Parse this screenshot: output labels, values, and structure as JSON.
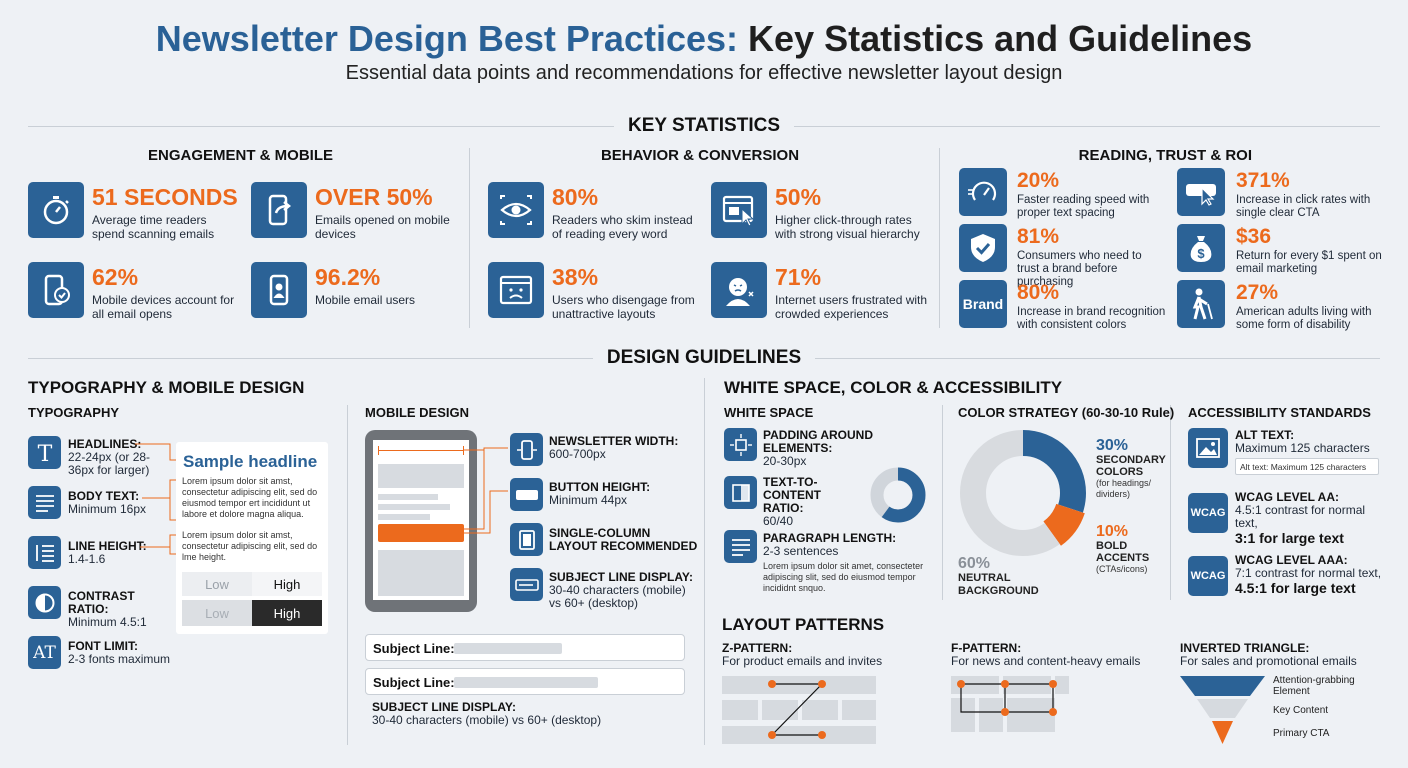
{
  "header": {
    "title_part1": "Newsletter Design Best Practices:",
    "title_part2": "Key Statistics and Guidelines",
    "subtitle": "Essential data points and recommendations for effective newsletter layout design"
  },
  "key_statistics": {
    "heading": "KEY STATISTICS",
    "columns": [
      {
        "heading": "ENGAGEMENT & MOBILE",
        "stats": [
          {
            "icon": "stopwatch-icon",
            "value": "51 SECONDS",
            "text": "Average time readers spend scanning emails"
          },
          {
            "icon": "phone-share-icon",
            "value": "OVER 50%",
            "text": "Emails opened on mobile devices"
          },
          {
            "icon": "phone-check-icon",
            "value": "62%",
            "text": "Mobile devices account for all email opens"
          },
          {
            "icon": "phone-user-icon",
            "value": "96.2%",
            "text": "Mobile email users"
          }
        ]
      },
      {
        "heading": "BEHAVIOR & CONVERSION",
        "stats": [
          {
            "icon": "eye-icon",
            "value": "80%",
            "text": "Readers who skim instead of reading every word"
          },
          {
            "icon": "browser-click-icon",
            "value": "50%",
            "text": "Higher click-through rates with strong visual hierarchy"
          },
          {
            "icon": "sad-browser-icon",
            "value": "38%",
            "text": "Users who disengage from unattractive layouts"
          },
          {
            "icon": "frustrated-user-icon",
            "value": "71%",
            "text": "Internet users frustrated with crowded experiences"
          }
        ]
      },
      {
        "heading": "READING, TRUST & ROI",
        "stats": [
          {
            "icon": "speedometer-icon",
            "value": "20%",
            "text": "Faster reading speed with proper text spacing"
          },
          {
            "icon": "cta-click-icon",
            "value": "371%",
            "text": "Increase in click rates with single clear CTA"
          },
          {
            "icon": "shield-check-icon",
            "value": "81%",
            "text": "Consumers who need to trust a brand before purchasing"
          },
          {
            "icon": "money-bag-icon",
            "value": "$36",
            "text": "Return for every $1 spent on email marketing"
          },
          {
            "icon": "brand-icon",
            "icon_label": "Brand",
            "value": "80%",
            "text": "Increase in brand recognition with consistent colors"
          },
          {
            "icon": "accessibility-person-icon",
            "value": "27%",
            "text": "American adults living with some form of disability"
          }
        ]
      }
    ]
  },
  "design_guidelines": {
    "heading": "DESIGN GUIDELINES",
    "typo_mobile_heading": "TYPOGRAPHY & MOBILE DESIGN",
    "typography": {
      "heading": "TYPOGRAPHY",
      "items": [
        {
          "icon": "text-t-icon",
          "label": "HEADLINES:",
          "value": "22-24px (or 28-36px for larger)"
        },
        {
          "icon": "paragraph-lines-icon",
          "label": "BODY TEXT:",
          "value": "Minimum 16px"
        },
        {
          "icon": "line-height-icon",
          "label": "LINE HEIGHT:",
          "value": "1.4-1.6"
        },
        {
          "icon": "contrast-icon",
          "label": "CONTRAST RATIO:",
          "value": "Minimum 4.5:1"
        },
        {
          "icon": "font-at-icon",
          "icon_label": "AT",
          "label": "FONT LIMIT:",
          "value": "2-3 fonts maximum"
        }
      ],
      "sample": {
        "headline": "Sample headline",
        "para1": "Lorem ipsum dolor sit amst, consectetur adipiscing elit, sed do eiusmod tempor ert incididunt ut labore et dolore magna aliqua.",
        "para2": "Lorem ipsum dolor sit amst, consectetur adipiscing elit, sed do lme height.",
        "contrast_low": "Low",
        "contrast_high": "High"
      }
    },
    "mobile": {
      "heading": "MOBILE DESIGN",
      "items": [
        {
          "icon": "phone-width-icon",
          "label": "NEWSLETTER WIDTH:",
          "value": "600-700px"
        },
        {
          "icon": "button-icon",
          "label": "BUTTON HEIGHT:",
          "value": "Minimum 44px"
        },
        {
          "icon": "single-column-icon",
          "label": "SINGLE-COLUMN LAYOUT RECOMMENDED",
          "value": ""
        },
        {
          "icon": "subject-line-icon",
          "label": "SUBJECT LINE DISPLAY:",
          "value": "30-40 characters (mobile) vs 60+ (desktop)"
        }
      ],
      "subject_label_1": "Subject Line:",
      "subject_label_2": "Subject Line:",
      "bottom_label": "SUBJECT LINE DISPLAY:",
      "bottom_value": "30-40 characters (mobile) vs 60+ (desktop)"
    },
    "ws_color_heading": "WHITE SPACE, COLOR & ACCESSIBILITY",
    "white_space": {
      "heading": "WHITE SPACE",
      "items": [
        {
          "icon": "padding-icon",
          "label": "PADDING AROUND ELEMENTS:",
          "value": "20-30px"
        },
        {
          "icon": "text-ratio-icon",
          "label": "TEXT-TO-CONTENT RATIO:",
          "value": "60/40"
        },
        {
          "icon": "paragraph-icon",
          "label": "PARAGRAPH LENGTH:",
          "value": "2-3 sentences"
        }
      ],
      "ratio_text": 60,
      "ratio_content": 40,
      "sample": "Lorem ipsum dolor sit amet, consecteter adipiscing slit, sed do eiusmod tempor incididnt snquo."
    },
    "color_strategy": {
      "heading": "COLOR STRATEGY (60-30-10 Rule)",
      "segments": [
        {
          "name": "NEUTRAL BACKGROUND",
          "pct_label": "60%",
          "value": 60,
          "color": "#d8dbdf",
          "note": ""
        },
        {
          "name": "SECONDARY COLORS",
          "pct_label": "30%",
          "value": 30,
          "color": "#2b6296",
          "note": "(for headings/ dividers)"
        },
        {
          "name": "BOLD ACCENTS",
          "pct_label": "10%",
          "value": 10,
          "color": "#ec6a1d",
          "note": "(CTAs/icons)"
        }
      ]
    },
    "accessibility": {
      "heading": "ACCESSIBILITY STANDARDS",
      "items": [
        {
          "icon": "image-alt-icon",
          "label": "ALT TEXT:",
          "value": "Maximum 125 characters",
          "example": "Alt text: Maximum 125 characters"
        },
        {
          "icon": "wcag-aa-icon",
          "icon_label": "WCAG",
          "label": "WCAG LEVEL AA:",
          "value": "4.5:1 contrast for normal text,",
          "big": "3:1 for large text"
        },
        {
          "icon": "wcag-aaa-icon",
          "icon_label": "WCAG",
          "label": "WCAG LEVEL AAA:",
          "value": "7:1 contrast for normal text,",
          "big": "4.5:1 for large text"
        }
      ]
    },
    "layout_patterns": {
      "heading": "LAYOUT PATTERNS",
      "items": [
        {
          "label": "Z-PATTERN:",
          "value": "For product emails and invites"
        },
        {
          "label": "F-PATTERN:",
          "value": "For news and content-heavy emails"
        },
        {
          "label": "INVERTED TRIANGLE:",
          "value": "For sales and promotional emails"
        }
      ],
      "triangle_labels": [
        "Attention-grabbing Element",
        "Key Content",
        "Primary CTA"
      ]
    }
  },
  "colors": {
    "primary": "#2b6296",
    "accent": "#ec6a1d",
    "neutral": "#d8dbdf"
  }
}
